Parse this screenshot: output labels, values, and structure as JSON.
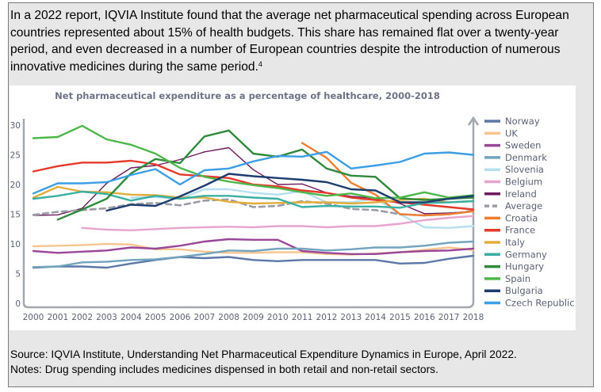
{
  "intro": {
    "text": "In a 2022 report, IQVIA Institute found that the average net pharmaceutical spending across European countries represented about 15% of health budgets. This share has remained flat over a twenty-year period, and even decreased in a number of European countries despite the introduction of numerous innovative medicines during the same period.",
    "footnote": "4"
  },
  "chart_data": {
    "type": "line",
    "title": "Net pharmaceutical expenditure as a percentage of healthcare, 2000-2018",
    "xlabel": "",
    "ylabel": "",
    "x": [
      2000,
      2001,
      2002,
      2003,
      2004,
      2005,
      2006,
      2007,
      2008,
      2009,
      2010,
      2011,
      2012,
      2013,
      2014,
      2015,
      2016,
      2017,
      2018
    ],
    "yticks": [
      0,
      5,
      10,
      15,
      20,
      25,
      30
    ],
    "ylim": [
      0,
      30
    ],
    "legend_position": "right",
    "grid": false,
    "series": [
      {
        "name": "Norway",
        "color": "#5b77a8",
        "values": [
          6.0,
          6.2,
          6.2,
          6.0,
          6.7,
          7.3,
          7.8,
          7.6,
          7.8,
          7.3,
          7.1,
          7.3,
          7.3,
          7.3,
          7.3,
          6.7,
          6.8,
          7.5,
          8.0
        ]
      },
      {
        "name": "UK",
        "color": "#f7c590",
        "values": [
          9.6,
          9.7,
          9.8,
          10.0,
          9.9,
          9.1,
          9.1,
          8.7,
          8.5,
          8.5,
          8.6,
          8.6,
          8.3,
          8.2,
          8.4,
          8.6,
          9.0,
          9.4,
          9.0
        ]
      },
      {
        "name": "Sweden",
        "color": "#9a479a",
        "values": [
          8.8,
          8.5,
          8.7,
          8.9,
          9.4,
          9.2,
          9.7,
          10.4,
          10.8,
          10.7,
          10.7,
          8.8,
          8.5,
          8.3,
          8.3,
          8.6,
          8.8,
          8.9,
          9.2
        ]
      },
      {
        "name": "Denmark",
        "color": "#73a4bd",
        "values": [
          6.1,
          6.2,
          6.9,
          7.0,
          7.3,
          7.4,
          7.8,
          8.3,
          8.9,
          8.8,
          9.2,
          9.2,
          8.9,
          9.1,
          9.4,
          9.4,
          9.7,
          10.2,
          10.4
        ]
      },
      {
        "name": "Slovenia",
        "color": "#b6dff0",
        "values": [
          null,
          null,
          null,
          null,
          17.8,
          17.9,
          17.6,
          19.2,
          19.2,
          18.6,
          18.3,
          18.9,
          17.0,
          17.0,
          17.7,
          15.0,
          12.8,
          12.7,
          13.0
        ]
      },
      {
        "name": "Belgium",
        "color": "#e6a5cf",
        "values": [
          null,
          null,
          12.7,
          12.4,
          12.3,
          12.5,
          12.7,
          12.8,
          12.9,
          12.8,
          13.0,
          13.0,
          12.8,
          13.0,
          13.0,
          13.4,
          14.0,
          14.4,
          14.7
        ]
      },
      {
        "name": "Ireland",
        "color": "#6e1a5e",
        "values": [
          14.8,
          14.9,
          16.0,
          20.2,
          22.8,
          23.2,
          24.2,
          25.5,
          26.2,
          22.5,
          20.0,
          20.1,
          18.6,
          18.0,
          17.7,
          16.8,
          15.1,
          15.2,
          15.5
        ]
      },
      {
        "name": "Average",
        "color": "#9a9da5",
        "dashed": true,
        "values": [
          14.9,
          15.4,
          15.7,
          16.0,
          16.7,
          16.9,
          16.5,
          17.3,
          17.5,
          16.2,
          16.4,
          17.2,
          16.8,
          15.9,
          15.7,
          15.0,
          14.8,
          15.0,
          15.6
        ]
      },
      {
        "name": "Croatia",
        "color": "#ec7f33",
        "values": [
          null,
          null,
          null,
          null,
          null,
          null,
          null,
          null,
          null,
          null,
          null,
          27.0,
          24.5,
          20.3,
          18.3,
          15.0,
          14.8,
          15.0,
          15.5
        ]
      },
      {
        "name": "France",
        "color": "#e5392c",
        "values": [
          22.2,
          23.1,
          23.7,
          23.7,
          24.0,
          23.4,
          21.7,
          21.4,
          21.1,
          20.0,
          19.7,
          19.0,
          18.6,
          17.8,
          17.4,
          17.0,
          16.6,
          16.2,
          15.8
        ]
      },
      {
        "name": "Italy",
        "color": "#e2ad3b",
        "values": [
          17.8,
          19.6,
          18.8,
          18.7,
          18.3,
          18.2,
          17.8,
          17.8,
          17.1,
          16.8,
          16.9,
          17.0,
          17.0,
          16.8,
          17.0,
          17.4,
          17.6,
          17.0,
          17.2
        ]
      },
      {
        "name": "Germany",
        "color": "#3bb0a2",
        "values": [
          17.6,
          18.1,
          18.8,
          18.4,
          17.3,
          18.1,
          17.6,
          18.1,
          18.1,
          17.8,
          17.6,
          16.2,
          16.4,
          16.3,
          16.3,
          16.1,
          16.9,
          17.0,
          17.2
        ]
      },
      {
        "name": "Hungary",
        "color": "#2f8a3c",
        "values": [
          null,
          14.1,
          15.8,
          17.6,
          21.9,
          24.3,
          23.6,
          28.1,
          29.1,
          25.2,
          24.7,
          25.9,
          22.7,
          21.5,
          21.3,
          17.7,
          17.4,
          17.6,
          17.8
        ]
      },
      {
        "name": "Spain",
        "color": "#4db849",
        "values": [
          27.8,
          28.0,
          29.9,
          27.6,
          26.7,
          25.2,
          22.8,
          21.3,
          20.5,
          19.9,
          19.4,
          18.7,
          18.1,
          18.5,
          17.7,
          17.8,
          18.7,
          17.8,
          18.2
        ]
      },
      {
        "name": "Bulgaria",
        "color": "#1e3d6f",
        "values": [
          null,
          null,
          null,
          15.6,
          16.6,
          16.4,
          18.0,
          19.8,
          21.8,
          21.4,
          21.1,
          20.8,
          20.4,
          19.2,
          19.0,
          17.0,
          17.0,
          17.6,
          18.1
        ]
      },
      {
        "name": "Czech Republic",
        "color": "#3c9ee4",
        "values": [
          18.5,
          20.2,
          20.2,
          20.4,
          21.6,
          22.6,
          20.0,
          22.4,
          22.7,
          23.9,
          24.8,
          24.7,
          25.5,
          22.7,
          23.2,
          23.8,
          25.2,
          25.4,
          25.0
        ]
      }
    ]
  },
  "source": {
    "line1": "Source: IQVIA Institute, Understanding Net Pharmaceutical Expenditure Dynamics in Europe, April 2022.",
    "line2": "Notes: Drug spending includes medicines dispensed in both retail and non-retail sectors."
  }
}
